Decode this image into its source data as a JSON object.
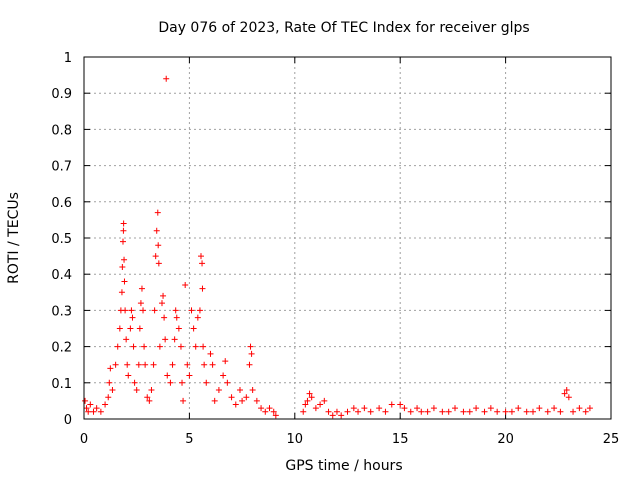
{
  "chart_data": {
    "type": "scatter",
    "title": "Day 076 of 2023, Rate Of TEC Index for receiver glps",
    "xlabel": "GPS time / hours",
    "ylabel": "ROTI / TECUs",
    "xlim": [
      0,
      25
    ],
    "ylim": [
      0,
      1
    ],
    "xticks": [
      0,
      5,
      10,
      15,
      20,
      25
    ],
    "xtick_labels": [
      "0",
      "5",
      "10",
      "15",
      "20",
      "25"
    ],
    "yticks": [
      0,
      0.1,
      0.2,
      0.3,
      0.4,
      0.5,
      0.6,
      0.7,
      0.8,
      0.9,
      1
    ],
    "ytick_labels": [
      "0",
      "0.1",
      "0.2",
      "0.3",
      "0.4",
      "0.5",
      "0.6",
      "0.7",
      "0.8",
      "0.9",
      "1"
    ],
    "grid": true,
    "marker": "+",
    "marker_color": "#ff0000",
    "series": [
      {
        "name": "ROTI",
        "points": [
          [
            0.05,
            0.05
          ],
          [
            0.12,
            0.03
          ],
          [
            0.2,
            0.02
          ],
          [
            0.3,
            0.04
          ],
          [
            0.45,
            0.02
          ],
          [
            0.6,
            0.03
          ],
          [
            0.8,
            0.02
          ],
          [
            1.0,
            0.04
          ],
          [
            1.15,
            0.06
          ],
          [
            1.2,
            0.1
          ],
          [
            1.25,
            0.14
          ],
          [
            1.35,
            0.08
          ],
          [
            1.5,
            0.15
          ],
          [
            1.6,
            0.2
          ],
          [
            1.7,
            0.25
          ],
          [
            1.75,
            0.3
          ],
          [
            1.8,
            0.35
          ],
          [
            1.82,
            0.42
          ],
          [
            1.85,
            0.49
          ],
          [
            1.87,
            0.52
          ],
          [
            1.88,
            0.54
          ],
          [
            1.9,
            0.44
          ],
          [
            1.92,
            0.38
          ],
          [
            1.95,
            0.3
          ],
          [
            2.0,
            0.22
          ],
          [
            2.05,
            0.15
          ],
          [
            2.1,
            0.12
          ],
          [
            2.2,
            0.25
          ],
          [
            2.25,
            0.3
          ],
          [
            2.3,
            0.28
          ],
          [
            2.35,
            0.2
          ],
          [
            2.4,
            0.1
          ],
          [
            2.5,
            0.08
          ],
          [
            2.6,
            0.15
          ],
          [
            2.65,
            0.25
          ],
          [
            2.7,
            0.32
          ],
          [
            2.75,
            0.36
          ],
          [
            2.8,
            0.3
          ],
          [
            2.85,
            0.2
          ],
          [
            2.9,
            0.15
          ],
          [
            3.0,
            0.06
          ],
          [
            3.1,
            0.05
          ],
          [
            3.2,
            0.08
          ],
          [
            3.3,
            0.15
          ],
          [
            3.35,
            0.3
          ],
          [
            3.4,
            0.45
          ],
          [
            3.45,
            0.52
          ],
          [
            3.5,
            0.57
          ],
          [
            3.52,
            0.48
          ],
          [
            3.55,
            0.43
          ],
          [
            3.6,
            0.2
          ],
          [
            3.7,
            0.32
          ],
          [
            3.75,
            0.34
          ],
          [
            3.8,
            0.28
          ],
          [
            3.85,
            0.22
          ],
          [
            3.9,
            0.94
          ],
          [
            3.95,
            0.12
          ],
          [
            4.1,
            0.1
          ],
          [
            4.2,
            0.15
          ],
          [
            4.3,
            0.22
          ],
          [
            4.35,
            0.3
          ],
          [
            4.4,
            0.28
          ],
          [
            4.5,
            0.25
          ],
          [
            4.6,
            0.2
          ],
          [
            4.65,
            0.1
          ],
          [
            4.7,
            0.05
          ],
          [
            4.8,
            0.37
          ],
          [
            4.9,
            0.15
          ],
          [
            5.0,
            0.12
          ],
          [
            5.1,
            0.3
          ],
          [
            5.2,
            0.25
          ],
          [
            5.3,
            0.2
          ],
          [
            5.4,
            0.28
          ],
          [
            5.5,
            0.3
          ],
          [
            5.55,
            0.45
          ],
          [
            5.6,
            0.43
          ],
          [
            5.62,
            0.36
          ],
          [
            5.65,
            0.2
          ],
          [
            5.7,
            0.15
          ],
          [
            5.8,
            0.1
          ],
          [
            6.0,
            0.18
          ],
          [
            6.1,
            0.15
          ],
          [
            6.2,
            0.05
          ],
          [
            6.4,
            0.08
          ],
          [
            6.6,
            0.12
          ],
          [
            6.7,
            0.16
          ],
          [
            6.8,
            0.1
          ],
          [
            7.0,
            0.06
          ],
          [
            7.2,
            0.04
          ],
          [
            7.4,
            0.08
          ],
          [
            7.5,
            0.05
          ],
          [
            7.7,
            0.06
          ],
          [
            7.85,
            0.15
          ],
          [
            7.9,
            0.2
          ],
          [
            7.95,
            0.18
          ],
          [
            8.0,
            0.08
          ],
          [
            8.2,
            0.05
          ],
          [
            8.4,
            0.03
          ],
          [
            8.6,
            0.02
          ],
          [
            8.8,
            0.03
          ],
          [
            9.0,
            0.02
          ],
          [
            9.1,
            0.01
          ],
          [
            10.4,
            0.02
          ],
          [
            10.5,
            0.04
          ],
          [
            10.6,
            0.05
          ],
          [
            10.7,
            0.07
          ],
          [
            10.8,
            0.06
          ],
          [
            11.0,
            0.03
          ],
          [
            11.2,
            0.04
          ],
          [
            11.4,
            0.05
          ],
          [
            11.6,
            0.02
          ],
          [
            11.8,
            0.01
          ],
          [
            12.0,
            0.02
          ],
          [
            12.2,
            0.01
          ],
          [
            12.5,
            0.02
          ],
          [
            12.8,
            0.03
          ],
          [
            13.0,
            0.02
          ],
          [
            13.3,
            0.03
          ],
          [
            13.6,
            0.02
          ],
          [
            14.0,
            0.03
          ],
          [
            14.3,
            0.02
          ],
          [
            14.6,
            0.04
          ],
          [
            15.0,
            0.04
          ],
          [
            15.2,
            0.03
          ],
          [
            15.5,
            0.02
          ],
          [
            15.8,
            0.03
          ],
          [
            16.0,
            0.02
          ],
          [
            16.3,
            0.02
          ],
          [
            16.6,
            0.03
          ],
          [
            17.0,
            0.02
          ],
          [
            17.3,
            0.02
          ],
          [
            17.6,
            0.03
          ],
          [
            18.0,
            0.02
          ],
          [
            18.3,
            0.02
          ],
          [
            18.6,
            0.03
          ],
          [
            19.0,
            0.02
          ],
          [
            19.3,
            0.03
          ],
          [
            19.6,
            0.02
          ],
          [
            20.0,
            0.02
          ],
          [
            20.3,
            0.02
          ],
          [
            20.6,
            0.03
          ],
          [
            21.0,
            0.02
          ],
          [
            21.3,
            0.02
          ],
          [
            21.6,
            0.03
          ],
          [
            22.0,
            0.02
          ],
          [
            22.3,
            0.03
          ],
          [
            22.6,
            0.02
          ],
          [
            22.8,
            0.07
          ],
          [
            22.9,
            0.08
          ],
          [
            23.0,
            0.06
          ],
          [
            23.2,
            0.02
          ],
          [
            23.5,
            0.03
          ],
          [
            23.8,
            0.02
          ],
          [
            24.0,
            0.03
          ]
        ]
      }
    ]
  }
}
